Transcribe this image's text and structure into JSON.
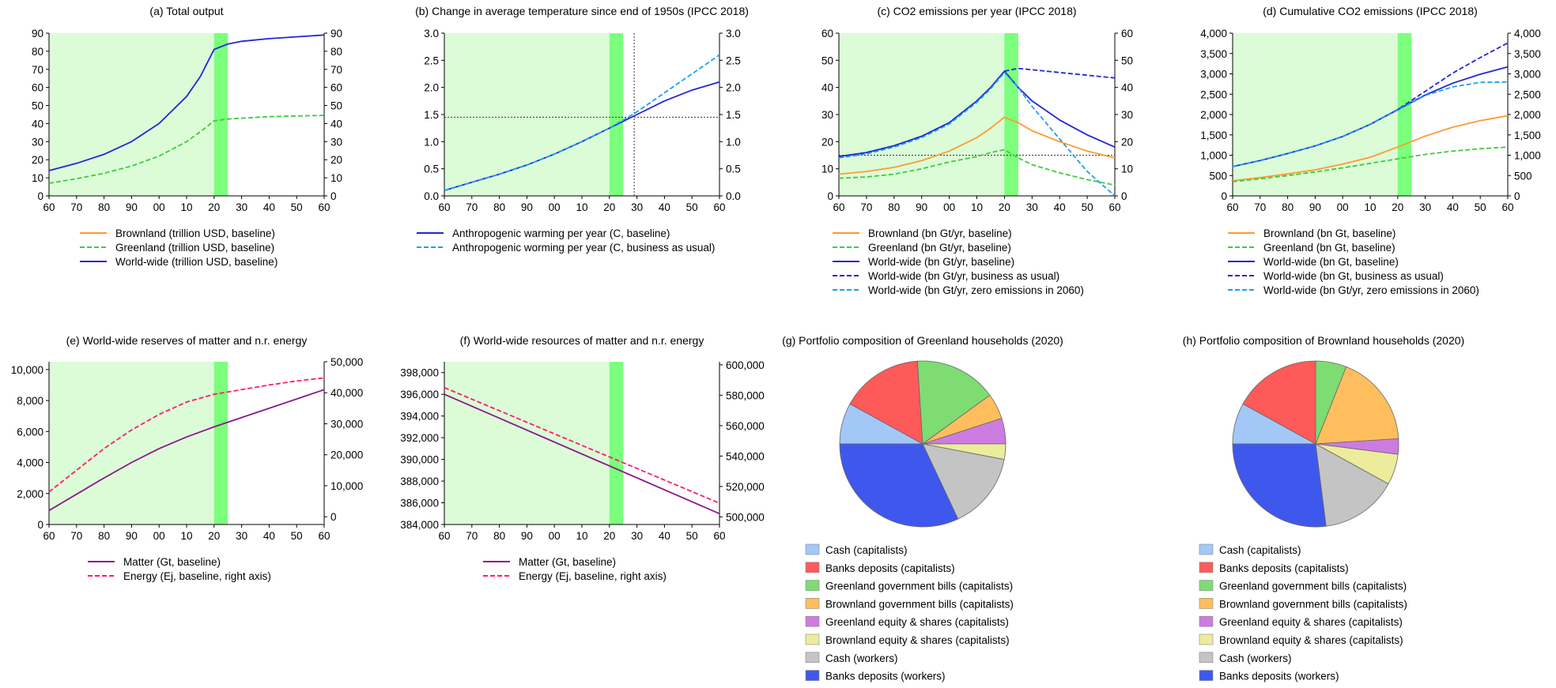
{
  "colors": {
    "brown": "#ff9a2e",
    "green": "#3ccc3c",
    "blue": "#2424d8",
    "lightblue": "#1ea0e6",
    "purple": "#8a1a8a",
    "pink": "#ff1a6e",
    "shade": "#dcfcd8",
    "band": "#7cff7c"
  },
  "chart_data": [
    {
      "id": "a",
      "type": "line",
      "title": "(a) Total output",
      "xticks": [
        "60",
        "70",
        "80",
        "90",
        "00",
        "10",
        "20",
        "30",
        "40",
        "50",
        "60"
      ],
      "x": [
        1960,
        1970,
        1980,
        1990,
        2000,
        2010,
        2015,
        2018,
        2020,
        2025,
        2030,
        2040,
        2050,
        2060
      ],
      "ylim": [
        0,
        90
      ],
      "yticks": [
        "0",
        "10",
        "20",
        "30",
        "40",
        "50",
        "60",
        "70",
        "80",
        "90"
      ],
      "right_axis": {
        "ylim": [
          0,
          90
        ],
        "yticks": [
          "0",
          "10",
          "20",
          "30",
          "40",
          "50",
          "60",
          "70",
          "80",
          "90"
        ]
      },
      "series": [
        {
          "name": "Greenland (trillion USD, baseline)",
          "color": "green",
          "dash": "dashed",
          "values": [
            7,
            9.5,
            12.5,
            16.5,
            22,
            30,
            35.5,
            39,
            41.5,
            42.5,
            43,
            43.8,
            44.2,
            44.5
          ]
        },
        {
          "name": "World-wide (trillion USD, baseline)",
          "color": "blue",
          "dash": "solid",
          "values": [
            14,
            18,
            23,
            30,
            40,
            55,
            66,
            75,
            81,
            84,
            85.5,
            87,
            88,
            89
          ]
        }
      ],
      "legend": [
        {
          "label": "Brownland (trillion USD, baseline)",
          "color": "brown",
          "dash": "solid"
        },
        {
          "label": "Greenland (trillion USD, baseline)",
          "color": "green",
          "dash": "dashed"
        },
        {
          "label": "World-wide (trillion USD, baseline)",
          "color": "blue",
          "dash": "solid"
        }
      ]
    },
    {
      "id": "b",
      "type": "line",
      "title": "(b) Change in average temperature since end of 1950s (IPCC 2018)",
      "xticks": [
        "60",
        "70",
        "80",
        "90",
        "00",
        "10",
        "20",
        "30",
        "40",
        "50",
        "60"
      ],
      "x": [
        1960,
        1970,
        1980,
        1990,
        2000,
        2010,
        2020,
        2030,
        2040,
        2050,
        2060
      ],
      "ylim": [
        0,
        3
      ],
      "yticks": [
        "0.0",
        "0.5",
        "1.0",
        "1.5",
        "2.0",
        "2.5",
        "3.0"
      ],
      "right_axis": {
        "ylim": [
          0,
          3
        ],
        "yticks": [
          "0.0",
          "0.5",
          "1.0",
          "1.5",
          "2.0",
          "2.5",
          "3.0"
        ]
      },
      "hline": 1.45,
      "vline": 2029,
      "series": [
        {
          "name": "Anthropogenic warming per year (C, baseline)",
          "color": "blue",
          "dash": "solid",
          "values": [
            0.1,
            0.25,
            0.4,
            0.57,
            0.77,
            1.0,
            1.25,
            1.5,
            1.75,
            1.95,
            2.1
          ]
        },
        {
          "name": "Anthropogenic worming per year (C, business as usual)",
          "color": "lightblue",
          "dash": "dashed",
          "values": [
            0.1,
            0.25,
            0.4,
            0.57,
            0.77,
            1.0,
            1.25,
            1.55,
            1.9,
            2.25,
            2.6
          ]
        }
      ],
      "legend": [
        {
          "label": "Anthropogenic warming per year (C, baseline)",
          "color": "blue",
          "dash": "solid"
        },
        {
          "label": "Anthropogenic worming per year (C, business as usual)",
          "color": "lightblue",
          "dash": "dashed"
        }
      ]
    },
    {
      "id": "c",
      "type": "line",
      "title": "(c) CO2 emissions per year (IPCC 2018)",
      "xticks": [
        "60",
        "70",
        "80",
        "90",
        "00",
        "10",
        "20",
        "30",
        "40",
        "50",
        "60"
      ],
      "x": [
        1960,
        1970,
        1980,
        1990,
        2000,
        2010,
        2015,
        2020,
        2025,
        2030,
        2040,
        2050,
        2060
      ],
      "ylim": [
        0,
        60
      ],
      "yticks": [
        "0",
        "10",
        "20",
        "30",
        "40",
        "50",
        "60"
      ],
      "right_axis": {
        "ylim": [
          0,
          60
        ],
        "yticks": [
          "0",
          "10",
          "20",
          "30",
          "40",
          "50",
          "60"
        ]
      },
      "hline": 15,
      "series": [
        {
          "name": "Brownland (bn Gt/yr, baseline)",
          "color": "brown",
          "dash": "solid",
          "values": [
            8,
            9,
            10.5,
            13,
            16.5,
            21.5,
            25,
            29,
            27,
            24,
            20,
            16.5,
            14
          ]
        },
        {
          "name": "Greenland (bn Gt/yr, baseline)",
          "color": "green",
          "dash": "dashed",
          "values": [
            6.5,
            7,
            8,
            10,
            12.5,
            14.5,
            16,
            17,
            14,
            11.5,
            8.5,
            6,
            4
          ]
        },
        {
          "name": "World-wide (bn Gt/yr, baseline)",
          "color": "blue",
          "dash": "solid",
          "values": [
            14.5,
            16,
            18.5,
            22,
            27,
            35,
            40,
            46,
            40,
            35,
            28,
            22.5,
            18
          ]
        },
        {
          "name": "World-wide (bn Gt/yr, business as usual)",
          "color": "blue",
          "dash": "dashed",
          "values": [
            14.5,
            16,
            18.5,
            22,
            27,
            35,
            40,
            46,
            47,
            46.5,
            45.5,
            44.5,
            43.5
          ]
        },
        {
          "name": "World-wide (bn Gt/yr, zero emissions in 2060)",
          "color": "lightblue",
          "dash": "dashed",
          "values": [
            14,
            15.5,
            18,
            21.5,
            26.5,
            34.5,
            39.5,
            45.5,
            40,
            33,
            21,
            9,
            0
          ]
        }
      ],
      "legend": [
        {
          "label": "Brownland (bn Gt/yr, baseline)",
          "color": "brown",
          "dash": "solid"
        },
        {
          "label": "Greenland (bn Gt/yr, baseline)",
          "color": "green",
          "dash": "dashed"
        },
        {
          "label": "World-wide (bn Gt/yr, baseline)",
          "color": "blue",
          "dash": "solid"
        },
        {
          "label": "World-wide (bn Gt/yr, business as usual)",
          "color": "blue",
          "dash": "dashed"
        },
        {
          "label": "World-wide (bn Gt/yr, zero emissions in 2060)",
          "color": "lightblue",
          "dash": "dashed"
        }
      ]
    },
    {
      "id": "d",
      "type": "line",
      "title": "(d) Cumulative CO2 emissions (IPCC 2018)",
      "xticks": [
        "60",
        "70",
        "80",
        "90",
        "00",
        "10",
        "20",
        "30",
        "40",
        "50",
        "60"
      ],
      "x": [
        1960,
        1970,
        1980,
        1990,
        2000,
        2010,
        2020,
        2030,
        2040,
        2050,
        2060
      ],
      "ylim": [
        0,
        4000
      ],
      "yticks": [
        "0",
        "500",
        "1,000",
        "1,500",
        "2,000",
        "2,500",
        "3,000",
        "3,500",
        "4,000"
      ],
      "right_axis": {
        "ylim": [
          0,
          4000
        ],
        "yticks": [
          "0",
          "500",
          "1,000",
          "1,500",
          "2,000",
          "2,500",
          "3,000",
          "3,500",
          "4,000"
        ]
      },
      "series": [
        {
          "name": "Brownland (bn Gt, baseline)",
          "color": "brown",
          "dash": "solid",
          "values": [
            370,
            450,
            540,
            640,
            780,
            950,
            1200,
            1470,
            1690,
            1850,
            1970
          ]
        },
        {
          "name": "Greenland (bn Gt, baseline)",
          "color": "green",
          "dash": "dashed",
          "values": [
            350,
            420,
            500,
            590,
            690,
            800,
            910,
            1020,
            1100,
            1160,
            1200
          ]
        },
        {
          "name": "World-wide (bn Gt, baseline)",
          "color": "blue",
          "dash": "solid",
          "values": [
            720,
            870,
            1040,
            1230,
            1460,
            1760,
            2120,
            2480,
            2770,
            2990,
            3170
          ]
        },
        {
          "name": "World-wide (bn Gt, business as usual)",
          "color": "blue",
          "dash": "dashed",
          "values": [
            720,
            870,
            1040,
            1230,
            1460,
            1760,
            2120,
            2570,
            3020,
            3400,
            3760
          ]
        },
        {
          "name": "World-wide (bn Gt/yr, zero emissions in 2060)",
          "color": "lightblue",
          "dash": "dashed",
          "values": [
            720,
            870,
            1040,
            1230,
            1460,
            1760,
            2110,
            2470,
            2680,
            2790,
            2800
          ]
        }
      ],
      "legend": [
        {
          "label": "Brownland (bn Gt, baseline)",
          "color": "brown",
          "dash": "solid"
        },
        {
          "label": "Greenland (bn Gt, baseline)",
          "color": "green",
          "dash": "dashed"
        },
        {
          "label": "World-wide (bn Gt, baseline)",
          "color": "blue",
          "dash": "solid"
        },
        {
          "label": "World-wide (bn Gt, business as usual)",
          "color": "blue",
          "dash": "dashed"
        },
        {
          "label": "World-wide (bn Gt/yr, zero emissions in 2060)",
          "color": "lightblue",
          "dash": "dashed"
        }
      ]
    },
    {
      "id": "e",
      "type": "line",
      "title": "(e) World-wide reserves of matter and n.r. energy",
      "xticks": [
        "60",
        "70",
        "80",
        "90",
        "00",
        "10",
        "20",
        "30",
        "40",
        "50",
        "60"
      ],
      "x": [
        1960,
        1970,
        1980,
        1990,
        2000,
        2010,
        2020,
        2030,
        2040,
        2050,
        2060
      ],
      "ylim": [
        0,
        10500
      ],
      "yticks": [
        "0",
        "2,000",
        "4,000",
        "6,000",
        "8,000",
        "10,000"
      ],
      "right_axis": {
        "ylim": [
          -2500,
          50000
        ],
        "yticks": [
          "0",
          "10,000",
          "20,000",
          "30,000",
          "40,000",
          "50,000"
        ]
      },
      "series": [
        {
          "name": "Matter (Gt, baseline)",
          "color": "purple",
          "dash": "solid",
          "axis": "left",
          "values": [
            900,
            1950,
            3000,
            4000,
            4900,
            5650,
            6300,
            6900,
            7500,
            8100,
            8700
          ]
        },
        {
          "name": "Energy (Ej, baseline, right axis)",
          "color": "pink",
          "dash": "dashed",
          "axis": "right",
          "values": [
            8000,
            15000,
            22000,
            28000,
            33000,
            37000,
            39500,
            41000,
            42500,
            43800,
            44800
          ]
        }
      ],
      "legend": [
        {
          "label": "Matter (Gt, baseline)",
          "color": "purple",
          "dash": "solid"
        },
        {
          "label": "Energy (Ej, baseline, right axis)",
          "color": "pink",
          "dash": "dashed"
        }
      ]
    },
    {
      "id": "f",
      "type": "line",
      "title": "(f) World-wide resources of matter and n.r. energy",
      "xticks": [
        "60",
        "70",
        "80",
        "90",
        "00",
        "10",
        "20",
        "30",
        "40",
        "50",
        "60"
      ],
      "x": [
        1960,
        2060
      ],
      "ylim": [
        384000,
        399000
      ],
      "yticks": [
        "384,000",
        "386,000",
        "388,000",
        "390,000",
        "392,000",
        "394,000",
        "396,000",
        "398,000"
      ],
      "right_axis": {
        "ylim": [
          495000,
          602000
        ],
        "yticks": [
          "500,000",
          "520,000",
          "540,000",
          "560,000",
          "580,000",
          "600,000"
        ]
      },
      "series": [
        {
          "name": "Matter (Gt, baseline)",
          "color": "purple",
          "dash": "solid",
          "axis": "left",
          "values": [
            396000,
            385000
          ]
        },
        {
          "name": "Energy (Ej, baseline, right axis)",
          "color": "pink",
          "dash": "dashed",
          "axis": "right",
          "values": [
            585000,
            509000
          ]
        }
      ],
      "legend": [
        {
          "label": "Matter (Gt, baseline)",
          "color": "purple",
          "dash": "solid"
        },
        {
          "label": "Energy (Ej, baseline, right axis)",
          "color": "pink",
          "dash": "dashed"
        }
      ]
    },
    {
      "id": "g",
      "type": "pie",
      "title": "(g) Portfolio composition of Greenland households (2020)",
      "labels": [
        "Cash (capitalists)",
        "Banks deposits (capitalists)",
        "Greenland government bills (capitalists)",
        "Brownland government bills (capitalists)",
        "Greenland equity & shares (capitalists)",
        "Brownland equity & shares (capitalists)",
        "Cash (workers)",
        "Banks deposits (workers)"
      ],
      "slice_colors": [
        "#a3c8f8",
        "#ff5a5a",
        "#7edc72",
        "#ffbe5e",
        "#cc7ce0",
        "#ecec9c",
        "#c4c4c4",
        "#3e58ee"
      ],
      "values": [
        8,
        16,
        16,
        5,
        5,
        3,
        15,
        32
      ]
    },
    {
      "id": "h",
      "type": "pie",
      "title": "(h) Portfolio composition of Brownland households (2020)",
      "labels": [
        "Cash (capitalists)",
        "Banks deposits (capitalists)",
        "Greenland government bills (capitalists)",
        "Brownland government bills (capitalists)",
        "Greenland equity & shares (capitalists)",
        "Brownland equity & shares (capitalists)",
        "Cash (workers)",
        "Banks deposits (workers)"
      ],
      "slice_colors": [
        "#a3c8f8",
        "#ff5a5a",
        "#7edc72",
        "#ffbe5e",
        "#cc7ce0",
        "#ecec9c",
        "#c4c4c4",
        "#3e58ee"
      ],
      "values": [
        8,
        17,
        6,
        18,
        3,
        6,
        15,
        27
      ]
    }
  ]
}
